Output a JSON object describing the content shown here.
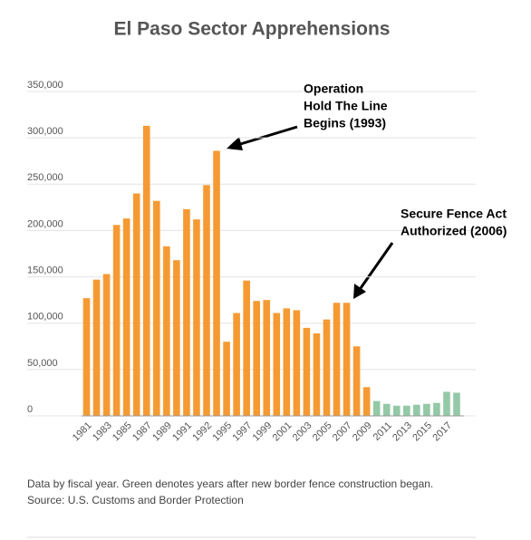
{
  "chart_data": {
    "type": "bar",
    "title": "El Paso Sector Apprehensions",
    "categories": [
      "1981",
      null,
      "1983",
      null,
      "1985",
      null,
      "1987",
      null,
      "1989",
      null,
      "1991",
      null,
      "1992",
      null,
      "1995",
      null,
      "1997",
      null,
      "1999",
      null,
      "2001",
      null,
      "2003",
      null,
      "2005",
      null,
      "2007",
      null,
      "2009",
      null,
      "2011",
      null,
      "2013",
      null,
      "2015",
      null,
      "2017",
      null
    ],
    "values": [
      127000,
      147000,
      153000,
      206000,
      213000,
      240000,
      313000,
      232000,
      183000,
      168000,
      223000,
      212000,
      249000,
      286000,
      80000,
      111000,
      146000,
      124000,
      125000,
      111000,
      116000,
      114000,
      95000,
      89000,
      104000,
      122000,
      122000,
      75000,
      31000,
      16000,
      13000,
      11000,
      11000,
      12000,
      13000,
      14000,
      26000,
      25000
    ],
    "colors": [
      "#f59a33",
      "#f59a33",
      "#f59a33",
      "#f59a33",
      "#f59a33",
      "#f59a33",
      "#f59a33",
      "#f59a33",
      "#f59a33",
      "#f59a33",
      "#f59a33",
      "#f59a33",
      "#f59a33",
      "#f59a33",
      "#f59a33",
      "#f59a33",
      "#f59a33",
      "#f59a33",
      "#f59a33",
      "#f59a33",
      "#f59a33",
      "#f59a33",
      "#f59a33",
      "#f59a33",
      "#f59a33",
      "#f59a33",
      "#f59a33",
      "#f59a33",
      "#f59a33",
      "#93c9a6",
      "#93c9a6",
      "#93c9a6",
      "#93c9a6",
      "#93c9a6",
      "#93c9a6",
      "#93c9a6",
      "#93c9a6",
      "#93c9a6"
    ],
    "ylim": [
      0,
      350000
    ],
    "yticks": [
      {
        "value": 0,
        "label": "0"
      },
      {
        "value": 50000,
        "label": "50,000"
      },
      {
        "value": 100000,
        "label": "100,000"
      },
      {
        "value": 150000,
        "label": "150,000"
      },
      {
        "value": 200000,
        "label": "200,000"
      },
      {
        "value": 250000,
        "label": "250,000"
      },
      {
        "value": 300000,
        "label": "300,000"
      },
      {
        "value": 350000,
        "label": "350,000"
      }
    ],
    "grid": true,
    "annotations": [
      {
        "lines": [
          "Operation",
          "Hold The Line",
          "Begins (1993)"
        ]
      },
      {
        "lines": [
          "Secure Fence Act",
          "Authorized (2006)"
        ]
      }
    ],
    "notes": [
      "Data by fiscal year. Green denotes years after new border fence construction began.",
      "Source: U.S. Customs and Border Protection"
    ]
  }
}
